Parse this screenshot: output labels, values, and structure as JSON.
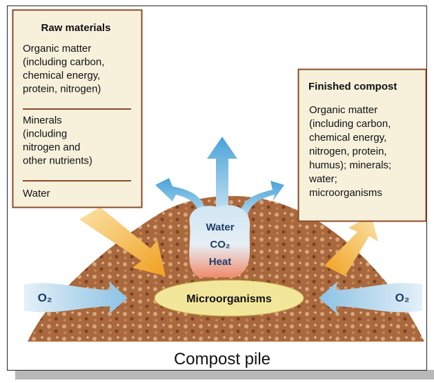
{
  "raw_materials": {
    "title": "Raw materials",
    "items": [
      [
        "Organic matter",
        "(including carbon,",
        "chemical energy,",
        "protein, nitrogen)"
      ],
      [
        "Minerals",
        "(including",
        "nitrogen and",
        "other nutrients)"
      ],
      [
        "Water"
      ]
    ]
  },
  "finished_compost": {
    "title": "Finished compost",
    "lines": [
      "Organic matter",
      "(including carbon,",
      "chemical energy,",
      "nitrogen, protein,",
      "humus); minerals;",
      "water;",
      "microorganisms"
    ]
  },
  "outputs": [
    "Water",
    "CO₂",
    "Heat"
  ],
  "microorganisms": "Microorganisms",
  "oxygen_left": "O₂",
  "oxygen_right": "O₂",
  "caption": "Compost pile"
}
